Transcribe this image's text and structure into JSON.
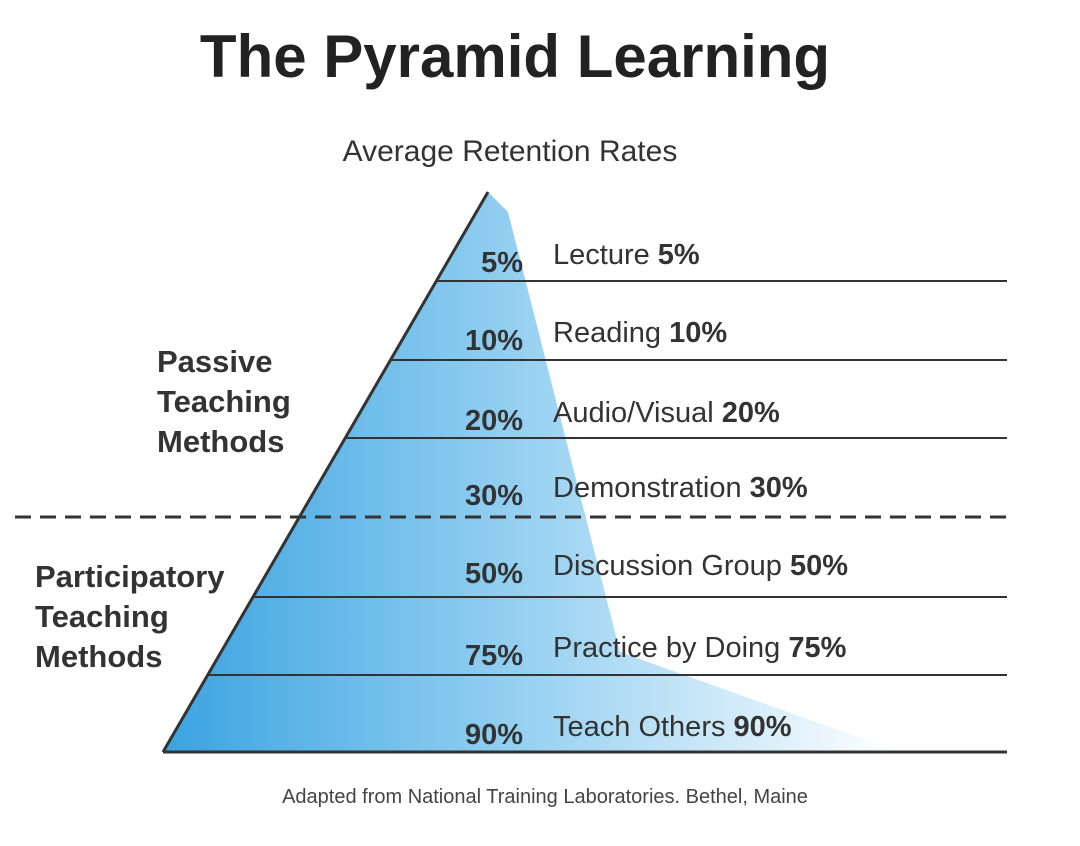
{
  "title": "The Pyramid Learning",
  "subtitle": "Average Retention Rates",
  "groups": {
    "passive": {
      "lines": [
        "Passive",
        "Teaching",
        "Methods"
      ]
    },
    "participatory": {
      "lines": [
        "Participatory",
        "Teaching",
        "Methods"
      ]
    }
  },
  "levels": [
    {
      "percent": "5%",
      "name": "Lecture",
      "value": "5%"
    },
    {
      "percent": "10%",
      "name": "Reading",
      "value": "10%"
    },
    {
      "percent": "20%",
      "name": "Audio/Visual",
      "value": "20%"
    },
    {
      "percent": "30%",
      "name": "Demonstration",
      "value": "30%"
    },
    {
      "percent": "50%",
      "name": "Discussion Group",
      "value": "50%"
    },
    {
      "percent": "75%",
      "name": "Practice by Doing",
      "value": "75%"
    },
    {
      "percent": "90%",
      "name": "Teach Others",
      "value": "90%"
    }
  ],
  "footnote": "Adapted from National Training Laboratories. Bethel, Maine",
  "colors": {
    "pyramid_dark": "#3aa3e0",
    "pyramid_light": "#ffffff",
    "text": "#333333",
    "line": "#333333"
  }
}
